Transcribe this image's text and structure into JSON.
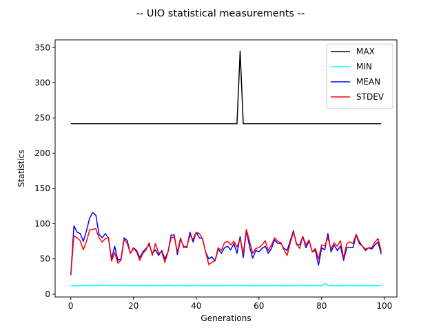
{
  "chart_data": {
    "type": "line",
    "title": "-- UIO statistical measurements --",
    "xlabel": "Generations",
    "ylabel": "Statistics",
    "xlim": [
      -5,
      104
    ],
    "ylim": [
      -4,
      361
    ],
    "xticks": [
      0,
      20,
      40,
      60,
      80,
      100
    ],
    "yticks": [
      0,
      50,
      100,
      150,
      200,
      250,
      300,
      350
    ],
    "grid": false,
    "legend_position": "top-right",
    "x": [
      0,
      1,
      2,
      3,
      4,
      5,
      6,
      7,
      8,
      9,
      10,
      11,
      12,
      13,
      14,
      15,
      16,
      17,
      18,
      19,
      20,
      21,
      22,
      23,
      24,
      25,
      26,
      27,
      28,
      29,
      30,
      31,
      32,
      33,
      34,
      35,
      36,
      37,
      38,
      39,
      40,
      41,
      42,
      43,
      44,
      45,
      46,
      47,
      48,
      49,
      50,
      51,
      52,
      53,
      54,
      55,
      56,
      57,
      58,
      59,
      60,
      61,
      62,
      63,
      64,
      65,
      66,
      67,
      68,
      69,
      70,
      71,
      72,
      73,
      74,
      75,
      76,
      77,
      78,
      79,
      80,
      81,
      82,
      83,
      84,
      85,
      86,
      87,
      88,
      89,
      90,
      91,
      92,
      93,
      94,
      95,
      96,
      97,
      98,
      99
    ],
    "series": [
      {
        "name": "MAX",
        "color": "#000000",
        "values": [
          242,
          242,
          242,
          242,
          242,
          242,
          242,
          242,
          242,
          242,
          242,
          242,
          242,
          242,
          242,
          242,
          242,
          242,
          242,
          242,
          242,
          242,
          242,
          242,
          242,
          242,
          242,
          242,
          242,
          242,
          242,
          242,
          242,
          242,
          242,
          242,
          242,
          242,
          242,
          242,
          242,
          242,
          242,
          242,
          242,
          242,
          242,
          242,
          242,
          242,
          242,
          242,
          242,
          242,
          345,
          242,
          242,
          242,
          242,
          242,
          242,
          242,
          242,
          242,
          242,
          242,
          242,
          242,
          242,
          242,
          242,
          242,
          242,
          242,
          242,
          242,
          242,
          242,
          242,
          242,
          242,
          242,
          242,
          242,
          242,
          242,
          242,
          242,
          242,
          242,
          242,
          242,
          242,
          242,
          242,
          242,
          242,
          242,
          242,
          242
        ]
      },
      {
        "name": "MIN",
        "color": "#00ffff",
        "values": [
          12,
          12,
          12,
          12,
          12,
          12,
          12.5,
          12,
          12.5,
          12,
          12.5,
          13,
          12.5,
          12,
          12.5,
          12,
          12,
          13,
          12,
          12.5,
          12,
          12,
          12,
          12.5,
          12,
          12,
          12,
          12.5,
          12,
          12,
          12,
          12.5,
          12,
          12,
          12,
          12.5,
          12,
          12,
          12,
          12,
          13,
          12,
          12,
          12,
          12,
          12,
          12,
          12,
          12,
          12,
          12,
          12,
          12.5,
          12,
          12.5,
          12,
          12,
          12,
          12,
          12,
          12,
          12,
          12,
          12,
          12,
          12,
          12.5,
          12,
          12,
          12,
          12,
          12,
          12,
          13,
          12,
          12,
          12,
          12.5,
          12,
          12,
          12,
          15,
          12.5,
          12,
          12,
          12,
          12,
          12,
          12,
          12.5,
          12,
          12,
          12,
          12,
          12,
          12,
          12,
          12,
          12,
          12
        ]
      },
      {
        "name": "MEAN",
        "color": "#0000ff",
        "values": [
          27,
          97,
          88,
          86,
          75,
          90,
          108,
          116,
          112,
          85,
          80,
          86,
          80,
          50,
          68,
          48,
          50,
          80,
          76,
          58,
          66,
          62,
          52,
          60,
          65,
          70,
          58,
          63,
          55,
          62,
          50,
          60,
          84,
          84,
          56,
          78,
          68,
          66,
          88,
          74,
          88,
          80,
          79,
          60,
          50,
          53,
          47,
          64,
          58,
          66,
          68,
          63,
          72,
          58,
          82,
          52,
          90,
          68,
          51,
          62,
          60,
          65,
          68,
          58,
          65,
          77,
          72,
          72,
          65,
          62,
          76,
          90,
          70,
          70,
          82,
          66,
          76,
          60,
          62,
          41,
          66,
          63,
          86,
          60,
          70,
          62,
          68,
          48,
          66,
          66,
          66,
          84,
          72,
          68,
          62,
          66,
          64,
          70,
          74,
          57
        ]
      },
      {
        "name": "STDEV",
        "color": "#ff0000",
        "values": [
          27,
          83,
          80,
          76,
          63,
          75,
          91,
          92,
          93,
          80,
          74,
          79,
          80,
          47,
          59,
          44,
          48,
          78,
          72,
          58,
          65,
          60,
          48,
          58,
          63,
          73,
          55,
          72,
          58,
          60,
          45,
          60,
          80,
          81,
          60,
          80,
          66,
          68,
          83,
          78,
          88,
          86,
          79,
          60,
          42,
          45,
          48,
          66,
          62,
          73,
          75,
          70,
          75,
          67,
          78,
          58,
          92,
          75,
          58,
          65,
          66,
          70,
          76,
          62,
          70,
          80,
          75,
          73,
          63,
          55,
          73,
          88,
          72,
          65,
          82,
          70,
          77,
          60,
          65,
          50,
          70,
          69,
          80,
          64,
          73,
          68,
          76,
          51,
          72,
          74,
          72,
          85,
          75,
          68,
          64,
          66,
          66,
          74,
          79,
          61
        ]
      }
    ]
  }
}
